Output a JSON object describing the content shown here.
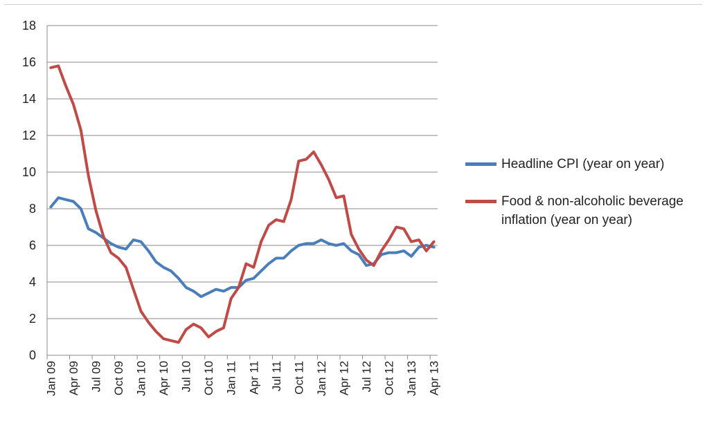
{
  "chart_data": {
    "type": "line",
    "title": "",
    "xlabel": "",
    "ylabel": "",
    "ylim": [
      0,
      18
    ],
    "yticks": [
      "0",
      "2",
      "4",
      "6",
      "8",
      "10",
      "12",
      "14",
      "16",
      "18"
    ],
    "grid": "horizontal",
    "legend_position": "right",
    "x": [
      "Jan 09",
      "Feb 09",
      "Mar 09",
      "Apr 09",
      "May 09",
      "Jun 09",
      "Jul 09",
      "Aug 09",
      "Sep 09",
      "Oct 09",
      "Nov 09",
      "Dec 09",
      "Jan 10",
      "Feb 10",
      "Mar 10",
      "Apr 10",
      "May 10",
      "Jun 10",
      "Jul 10",
      "Aug 10",
      "Sep 10",
      "Oct 10",
      "Nov 10",
      "Dec 10",
      "Jan 11",
      "Feb 11",
      "Mar 11",
      "Apr 11",
      "May 11",
      "Jun 11",
      "Jul 11",
      "Aug 11",
      "Sep 11",
      "Oct 11",
      "Nov 11",
      "Dec 11",
      "Jan 12",
      "Feb 12",
      "Mar 12",
      "Apr 12",
      "May 12",
      "Jun 12",
      "Jul 12",
      "Aug 12",
      "Sep 12",
      "Oct 12",
      "Nov 12",
      "Dec 12",
      "Jan 13",
      "Feb 13",
      "Mar 13",
      "Apr 13"
    ],
    "x_tick_labels": [
      "Jan 09",
      "Apr 09",
      "Jul 09",
      "Oct 09",
      "Jan 10",
      "Apr 10",
      "Jul 10",
      "Oct 10",
      "Jan 11",
      "Apr 11",
      "Jul 11",
      "Oct 11",
      "Jan 12",
      "Apr 12",
      "Jul 12",
      "Oct 12",
      "Jan 13",
      "Apr 13"
    ],
    "series": [
      {
        "name": "Headline CPI (year on year)",
        "color": "#4a7ebb",
        "values": [
          8.1,
          8.6,
          8.5,
          8.4,
          8.0,
          6.9,
          6.7,
          6.4,
          6.1,
          5.9,
          5.8,
          6.3,
          6.2,
          5.7,
          5.1,
          4.8,
          4.6,
          4.2,
          3.7,
          3.5,
          3.2,
          3.4,
          3.6,
          3.5,
          3.7,
          3.7,
          4.1,
          4.2,
          4.6,
          5.0,
          5.3,
          5.3,
          5.7,
          6.0,
          6.1,
          6.1,
          6.3,
          6.1,
          6.0,
          6.1,
          5.7,
          5.5,
          4.9,
          5.0,
          5.5,
          5.6,
          5.6,
          5.7,
          5.4,
          5.9,
          6.0,
          5.9
        ]
      },
      {
        "name": "Food & non-alcoholic beverage inflation (year on year)",
        "color": "#be4b48",
        "values": [
          15.7,
          15.8,
          14.7,
          13.7,
          12.3,
          9.8,
          7.9,
          6.5,
          5.6,
          5.3,
          4.8,
          3.6,
          2.4,
          1.8,
          1.3,
          0.9,
          0.8,
          0.7,
          1.4,
          1.7,
          1.5,
          1.0,
          1.3,
          1.5,
          3.1,
          3.7,
          5.0,
          4.8,
          6.2,
          7.1,
          7.4,
          7.3,
          8.5,
          10.6,
          10.7,
          11.1,
          10.4,
          9.6,
          8.6,
          8.7,
          6.6,
          5.8,
          5.2,
          4.9,
          5.7,
          6.3,
          7.0,
          6.9,
          6.2,
          6.3,
          5.7,
          6.2
        ]
      }
    ]
  }
}
